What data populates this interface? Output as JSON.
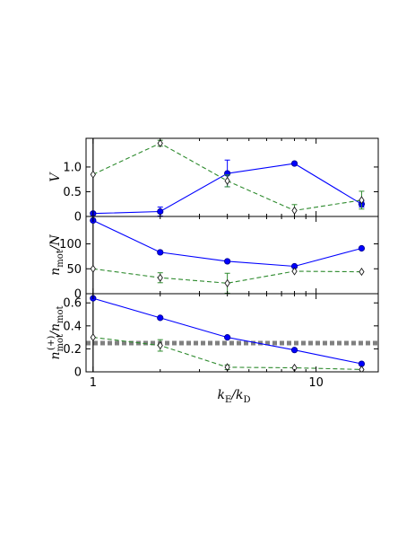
{
  "chart_data": {
    "type": "line",
    "x_scale": "log",
    "xlim": [
      0.93,
      19.0
    ],
    "x_ticks": [
      {
        "value": 1,
        "label": "1"
      },
      {
        "value": 10,
        "label": "10"
      }
    ],
    "xlabel": {
      "main": "k",
      "sub1": "E",
      "mid": "/k",
      "sub2": "D"
    },
    "colors": {
      "series_a": "#0000ff",
      "series_b": "#2e8b2e",
      "reference": "#808080",
      "axes": "#000000"
    },
    "panels": [
      {
        "ylabel": {
          "main": "V",
          "sub": "",
          "sup": "",
          "tail": "",
          "tailsub": ""
        },
        "ylim": [
          0,
          1.58
        ],
        "y_ticks": [
          {
            "value": 0,
            "label": "0"
          },
          {
            "value": 0.5,
            "label": "0.5"
          },
          {
            "value": 1.0,
            "label": "1.0"
          }
        ],
        "series": [
          {
            "style": "solid",
            "marker": "filled-circle",
            "x": [
              1,
              2,
              4,
              8,
              16
            ],
            "y": [
              0.06,
              0.1,
              0.87,
              1.07,
              0.25
            ],
            "err": [
              0.0,
              0.09,
              0.27,
              0.0,
              0.06
            ]
          },
          {
            "style": "dashed",
            "marker": "open-diamond",
            "x": [
              1,
              2,
              4,
              8,
              16
            ],
            "y": [
              0.85,
              1.48,
              0.72,
              0.12,
              0.33
            ],
            "err": [
              0.0,
              0.06,
              0.12,
              0.12,
              0.18
            ]
          }
        ]
      },
      {
        "ylabel": {
          "main": "n",
          "sub": "mot",
          "sup": "",
          "tail": "/N",
          "tailsub": ""
        },
        "ylim": [
          0,
          155
        ],
        "y_ticks": [
          {
            "value": 0,
            "label": "0"
          },
          {
            "value": 50,
            "label": "50"
          },
          {
            "value": 100,
            "label": "100"
          }
        ],
        "series": [
          {
            "style": "solid",
            "marker": "filled-circle",
            "x": [
              1,
              2,
              4,
              8,
              16
            ],
            "y": [
              147,
              83,
              65,
              55,
              91
            ],
            "err": [
              0,
              0,
              0,
              0,
              0
            ]
          },
          {
            "style": "dashed",
            "marker": "open-diamond",
            "x": [
              1,
              2,
              4,
              8,
              16
            ],
            "y": [
              50,
              32,
              21,
              45,
              44
            ],
            "err": [
              0,
              10,
              20,
              0,
              0
            ]
          }
        ]
      },
      {
        "ylabel": {
          "main": "n",
          "sub": "mot",
          "sup": "(+)",
          "tail": "/n",
          "tailsub": "mot"
        },
        "ylim": [
          0,
          0.68
        ],
        "y_ticks": [
          {
            "value": 0,
            "label": "0"
          },
          {
            "value": 0.2,
            "label": "0.2"
          },
          {
            "value": 0.4,
            "label": "0.4"
          },
          {
            "value": 0.6,
            "label": "0.6"
          }
        ],
        "reference_line": 0.25,
        "series": [
          {
            "style": "solid",
            "marker": "filled-circle",
            "x": [
              1,
              2,
              4,
              8,
              16
            ],
            "y": [
              0.64,
              0.47,
              0.3,
              0.19,
              0.07
            ],
            "err": [
              0,
              0,
              0,
              0,
              0
            ]
          },
          {
            "style": "dashed",
            "marker": "open-diamond",
            "x": [
              1,
              2,
              4,
              8,
              16
            ],
            "y": [
              0.3,
              0.23,
              0.04,
              0.035,
              0.02
            ],
            "err": [
              0,
              0.05,
              0.02,
              0,
              0
            ]
          }
        ]
      }
    ]
  }
}
